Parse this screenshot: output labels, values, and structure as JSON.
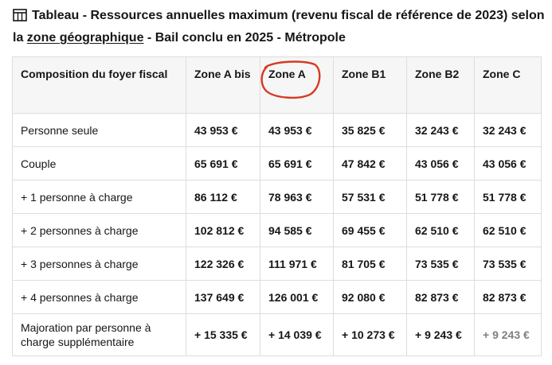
{
  "title": {
    "part1": "Tableau - Ressources annuelles maximum (revenu fiscal de référence de 2023) selon la ",
    "link": "zone géographique",
    "part2": " - Bail conclu en 2025 - Métropole"
  },
  "table": {
    "headers": [
      "Composition du foyer fiscal",
      "Zone A bis",
      "Zone A",
      "Zone B1",
      "Zone B2",
      "Zone C"
    ],
    "rows": [
      [
        "Personne seule",
        "43 953 €",
        "43 953 €",
        "35 825 €",
        "32 243 €",
        "32 243 €"
      ],
      [
        "Couple",
        "65 691 €",
        "65 691 €",
        "47 842 €",
        "43 056 €",
        "43 056 €"
      ],
      [
        "+ 1 personne à charge",
        "86 112 €",
        "78 963 €",
        "57 531 €",
        "51 778 €",
        "51 778 €"
      ],
      [
        "+ 2 personnes à charge",
        "102 812 €",
        "94 585 €",
        "69 455 €",
        "62 510 €",
        "62 510 €"
      ],
      [
        "+ 3 personnes à charge",
        "122 326 €",
        "111 971 €",
        "81 705 €",
        "73 535 €",
        "73 535 €"
      ],
      [
        "+ 4 personnes à charge",
        "137 649 €",
        "126 001 €",
        "92 080 €",
        "82 873 €",
        "82 873 €"
      ],
      [
        "Majoration par personne à charge supplémentaire",
        "+ 15 335 €",
        "+ 14 039 €",
        "+ 10 273 €",
        "+ 9 243 €",
        "+ 9 243 €"
      ]
    ]
  },
  "colors": {
    "annotation_circle": "#d63a22",
    "header_bg": "#f6f6f6",
    "border": "#dddddd"
  },
  "icons": {
    "title_icon": "table-icon"
  }
}
